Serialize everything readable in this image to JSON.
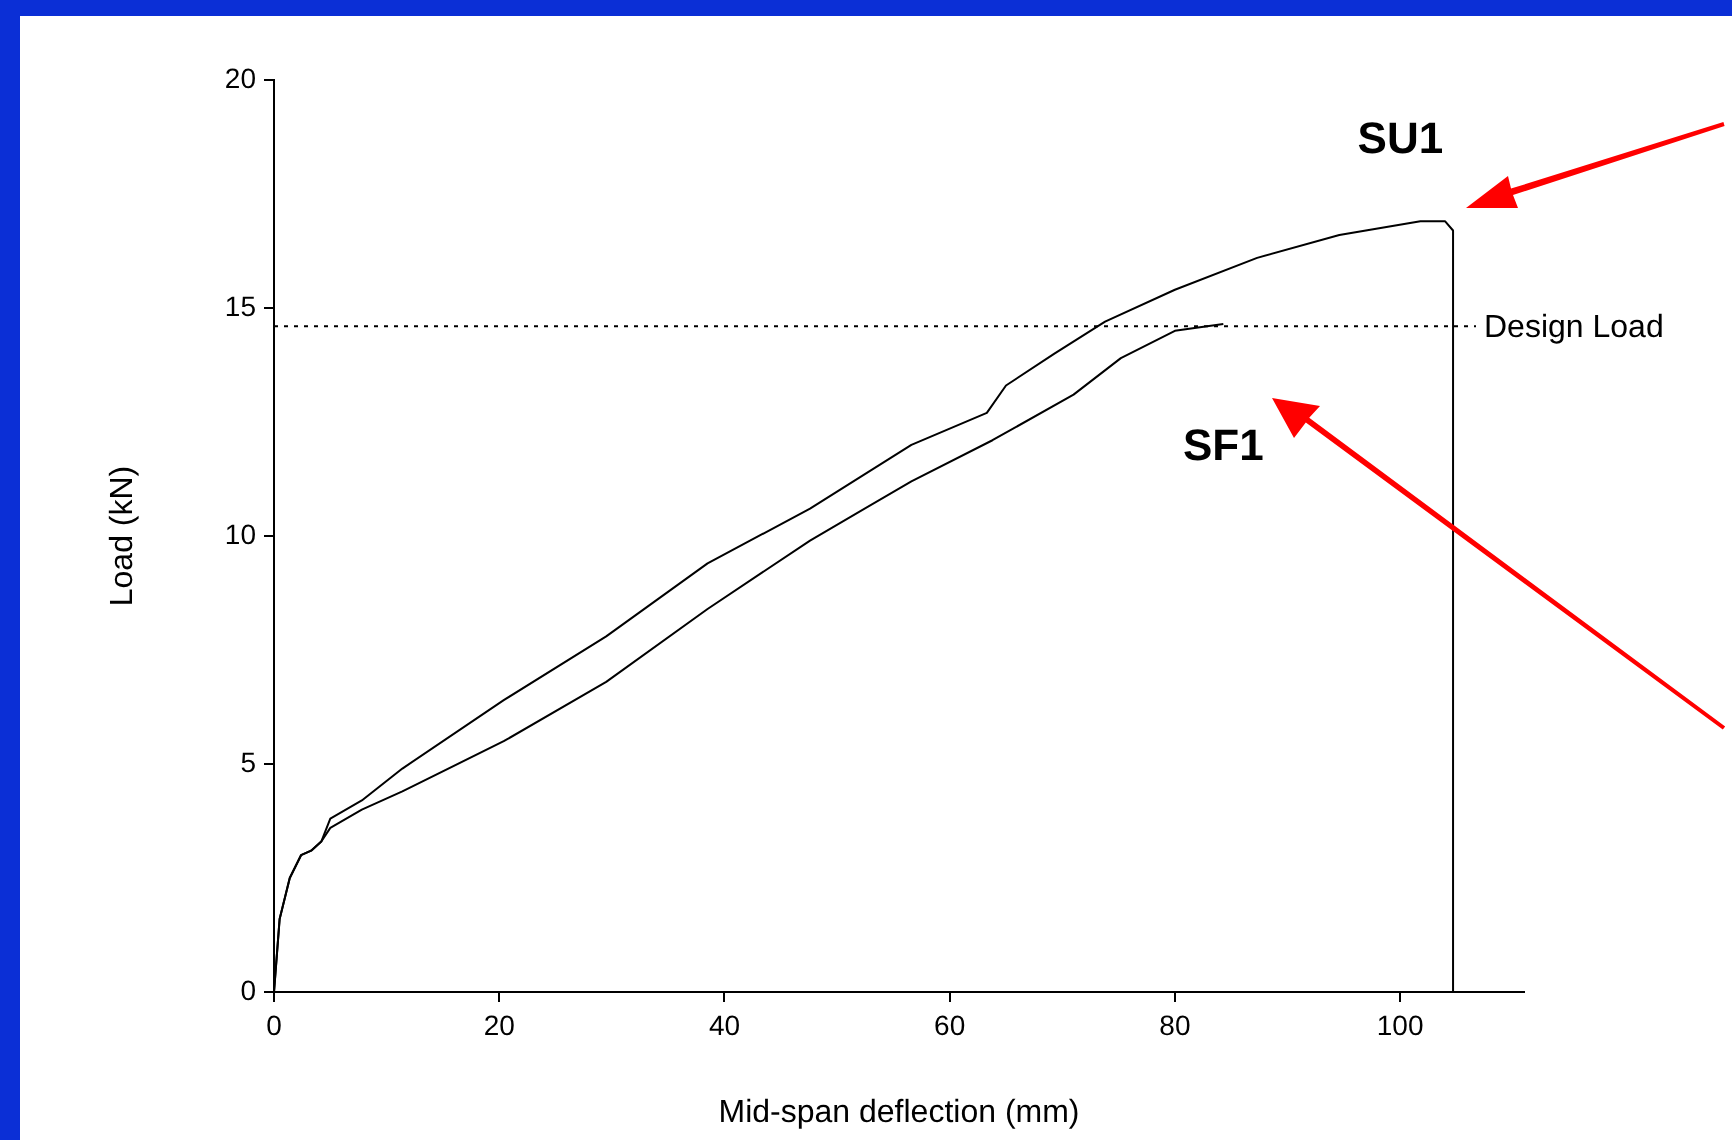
{
  "chart_data": {
    "type": "line",
    "xlabel": "Mid-span deflection (mm)",
    "ylabel": "Load (kN)",
    "xlim": [
      0,
      111
    ],
    "xticks": [
      0,
      20,
      40,
      60,
      80,
      100
    ],
    "ylim": [
      0,
      20
    ],
    "yticks": [
      0,
      5,
      10,
      15,
      20
    ],
    "grid": false,
    "legend": false,
    "marker": "none",
    "line_style": "solid",
    "ref_lines": [
      {
        "axis": "y",
        "value": 14.6,
        "label": "Design Load",
        "line_style": "dotted",
        "color": "#000000"
      }
    ],
    "series": [
      {
        "name": "SU1",
        "color": "#000000",
        "x": [
          0,
          0.5,
          1.4,
          2.4,
          3.3,
          4.2,
          5,
          7.8,
          11.4,
          20.4,
          29.5,
          38.5,
          47.6,
          56.6,
          63.3,
          65,
          69.3,
          73.8,
          80,
          87.3,
          94.6,
          101.8,
          104,
          104.7,
          104.7
        ],
        "values": [
          0,
          1.6,
          2.5,
          3,
          3.1,
          3.3,
          3.8,
          4.2,
          4.9,
          6.4,
          7.8,
          9.4,
          10.6,
          12,
          12.7,
          13.3,
          14,
          14.7,
          15.4,
          16.1,
          16.6,
          16.9,
          16.9,
          16.7,
          0
        ]
      },
      {
        "name": "SF1",
        "color": "#000000",
        "x": [
          0,
          0.5,
          1.4,
          2.4,
          3.3,
          4.2,
          5,
          7.8,
          11.4,
          20.4,
          29.5,
          38.5,
          47.6,
          56.6,
          63.8,
          71,
          75.2,
          80,
          84.3
        ],
        "values": [
          0,
          1.6,
          2.5,
          3,
          3.1,
          3.3,
          3.6,
          4,
          4.4,
          5.5,
          6.8,
          8.4,
          9.9,
          11.2,
          12.1,
          13.1,
          13.9,
          14.5,
          14.65
        ]
      }
    ]
  }
}
